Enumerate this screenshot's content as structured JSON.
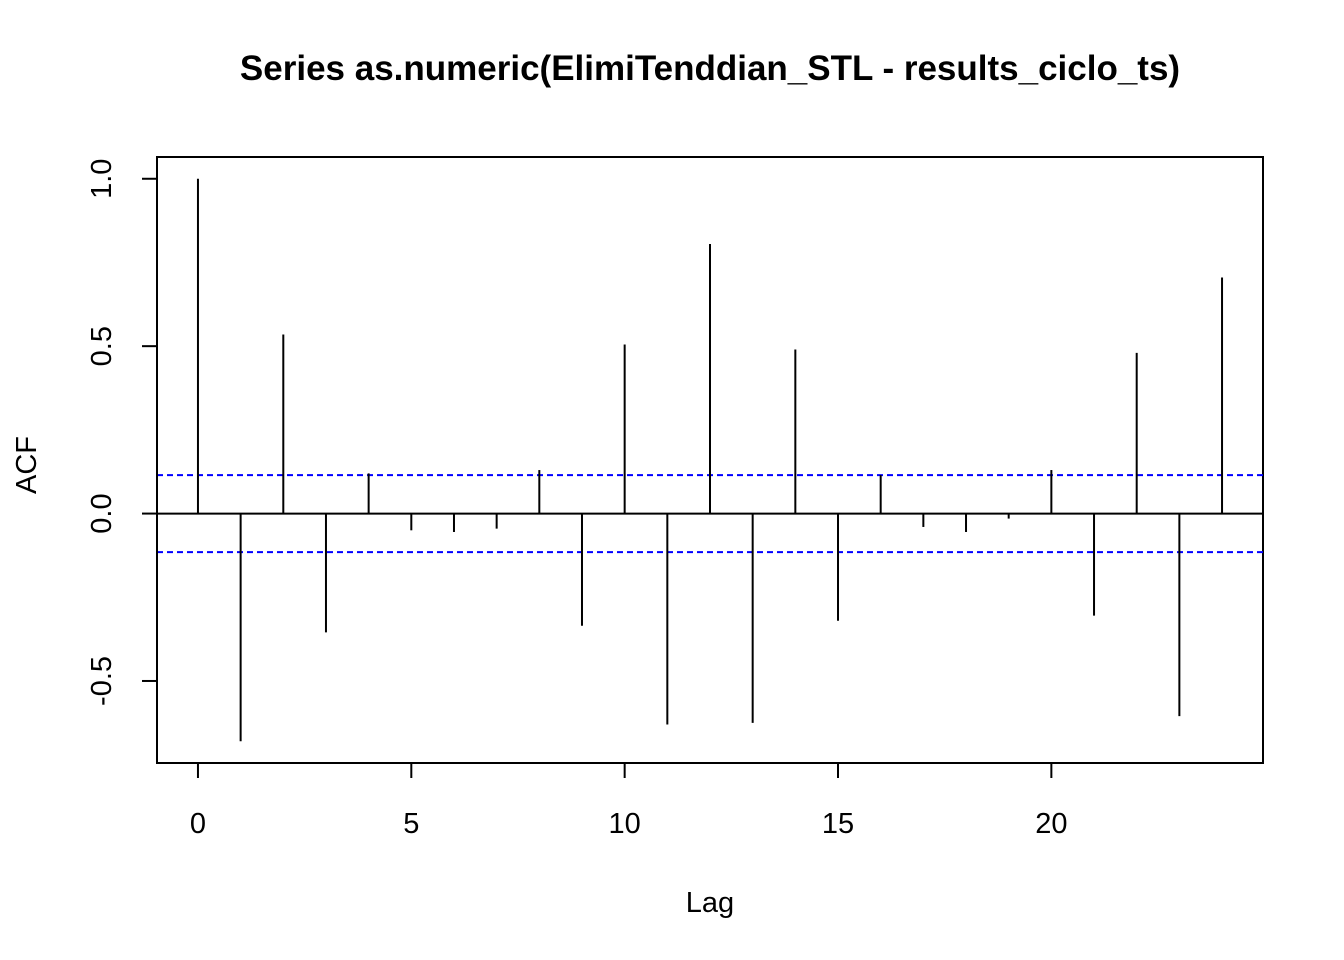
{
  "chart_data": {
    "type": "bar",
    "title": "Series  as.numeric(ElimiTenddian_STL - results_ciclo_ts)",
    "xlabel": "Lag",
    "ylabel": "ACF",
    "xlim": [
      -0.96,
      24.96
    ],
    "ylim": [
      -0.745,
      1.065
    ],
    "x_ticks": [
      0,
      5,
      10,
      15,
      20
    ],
    "x_tick_labels": [
      "0",
      "5",
      "10",
      "15",
      "20"
    ],
    "y_ticks": [
      -0.5,
      0.0,
      0.5,
      1.0
    ],
    "y_tick_labels": [
      "-0.5",
      "0.0",
      "0.5",
      "1.0"
    ],
    "lags": [
      0,
      1,
      2,
      3,
      4,
      5,
      6,
      7,
      8,
      9,
      10,
      11,
      12,
      13,
      14,
      15,
      16,
      17,
      18,
      19,
      20,
      21,
      22,
      23,
      24
    ],
    "values": [
      1.0,
      -0.68,
      0.535,
      -0.355,
      0.12,
      -0.05,
      -0.055,
      -0.045,
      0.13,
      -0.335,
      0.505,
      -0.63,
      0.805,
      -0.625,
      0.49,
      -0.32,
      0.115,
      -0.04,
      -0.055,
      -0.015,
      0.13,
      -0.305,
      0.48,
      -0.605,
      0.705
    ],
    "confidence_bound": 0.115,
    "grid": false,
    "legend": "none",
    "colors": {
      "spike": "#000000",
      "bound": "#0000ff",
      "zero": "#000000"
    }
  }
}
